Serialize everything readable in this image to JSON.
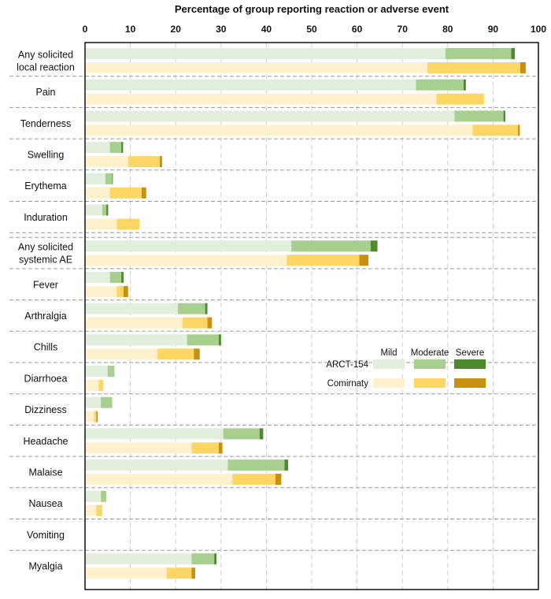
{
  "chart_data": {
    "type": "bar",
    "orientation": "horizontal",
    "stacked": true,
    "xlabel": "Percentage of group reporting reaction or adverse event",
    "xlim": [
      0,
      100
    ],
    "xticks": [
      0,
      10,
      20,
      30,
      40,
      50,
      60,
      70,
      80,
      90,
      100
    ],
    "severity_levels": [
      "Mild",
      "Moderate",
      "Severe"
    ],
    "groups": [
      "ARCT-154",
      "Comirnaty"
    ],
    "legend_position": "middle-right",
    "colors": {
      "ARCT-154": [
        "#e2efdc",
        "#a7cf8d",
        "#4f8a2d"
      ],
      "Comirnaty": [
        "#fff1cc",
        "#fdd663",
        "#c9900f"
      ]
    },
    "categories": [
      {
        "label": "Any solicited local reaction",
        "lines": [
          "Any solicited",
          "local reaction"
        ],
        "section": "local",
        "ARCT-154": [
          79.5,
          14.5,
          0.8
        ],
        "Comirnaty": [
          75.5,
          20.5,
          1.2
        ]
      },
      {
        "label": "Pain",
        "lines": [
          "Pain"
        ],
        "section": "local",
        "ARCT-154": [
          73,
          10.5,
          0.5
        ],
        "Comirnaty": [
          77.5,
          10.5,
          0
        ]
      },
      {
        "label": "Tenderness",
        "lines": [
          "Tenderness"
        ],
        "section": "local",
        "ARCT-154": [
          81.5,
          10.8,
          0.4
        ],
        "Comirnaty": [
          85.5,
          10,
          0.4
        ]
      },
      {
        "label": "Swelling",
        "lines": [
          "Swelling"
        ],
        "section": "local",
        "ARCT-154": [
          5.5,
          2.5,
          0.4
        ],
        "Comirnaty": [
          9.5,
          7,
          0.5
        ]
      },
      {
        "label": "Erythema",
        "lines": [
          "Erythema"
        ],
        "section": "local",
        "ARCT-154": [
          4.5,
          1.5,
          0.1
        ],
        "Comirnaty": [
          5.5,
          7,
          1
        ]
      },
      {
        "label": "Induration",
        "lines": [
          "Induration"
        ],
        "section": "local",
        "ARCT-154": [
          3.8,
          0.9,
          0.4
        ],
        "Comirnaty": [
          7,
          5,
          0
        ]
      },
      {
        "label": "Any solicited systemic AE",
        "lines": [
          "Any solicited",
          "systemic AE"
        ],
        "section": "systemic",
        "ARCT-154": [
          45.5,
          17.5,
          1.5
        ],
        "Comirnaty": [
          44.5,
          16,
          2
        ]
      },
      {
        "label": "Fever",
        "lines": [
          "Fever"
        ],
        "section": "systemic",
        "ARCT-154": [
          5.5,
          2.5,
          0.5
        ],
        "Comirnaty": [
          7,
          1.5,
          1
        ]
      },
      {
        "label": "Arthralgia",
        "lines": [
          "Arthralgia"
        ],
        "section": "systemic",
        "ARCT-154": [
          20.5,
          6,
          0.5
        ],
        "Comirnaty": [
          21.5,
          5.5,
          1
        ]
      },
      {
        "label": "Chills",
        "lines": [
          "Chills"
        ],
        "section": "systemic",
        "ARCT-154": [
          22.5,
          7,
          0.5
        ],
        "Comirnaty": [
          16,
          8,
          1.3
        ]
      },
      {
        "label": "Diarrhoea",
        "lines": [
          "Diarrhoea"
        ],
        "section": "systemic",
        "ARCT-154": [
          5,
          1.5,
          0
        ],
        "Comirnaty": [
          3,
          1,
          0
        ]
      },
      {
        "label": "Dizziness",
        "lines": [
          "Dizziness"
        ],
        "section": "systemic",
        "ARCT-154": [
          3.5,
          2.5,
          0
        ],
        "Comirnaty": [
          2,
          0.5,
          0.3
        ]
      },
      {
        "label": "Headache",
        "lines": [
          "Headache"
        ],
        "section": "systemic",
        "ARCT-154": [
          30.5,
          8,
          0.8
        ],
        "Comirnaty": [
          23.5,
          6,
          0.8
        ]
      },
      {
        "label": "Malaise",
        "lines": [
          "Malaise"
        ],
        "section": "systemic",
        "ARCT-154": [
          31.5,
          12.5,
          0.8
        ],
        "Comirnaty": [
          32.5,
          9.5,
          1.3
        ]
      },
      {
        "label": "Nausea",
        "lines": [
          "Nausea"
        ],
        "section": "systemic",
        "ARCT-154": [
          3.5,
          1.2,
          0
        ],
        "Comirnaty": [
          2.5,
          1.3,
          0
        ]
      },
      {
        "label": "Vomiting",
        "lines": [
          "Vomiting"
        ],
        "section": "systemic",
        "ARCT-154": [
          0,
          0,
          0
        ],
        "Comirnaty": [
          0,
          0,
          0
        ]
      },
      {
        "label": "Myalgia",
        "lines": [
          "Myalgia"
        ],
        "section": "systemic",
        "ARCT-154": [
          23.5,
          5,
          0.5
        ],
        "Comirnaty": [
          18,
          5.5,
          0.8
        ]
      }
    ]
  }
}
